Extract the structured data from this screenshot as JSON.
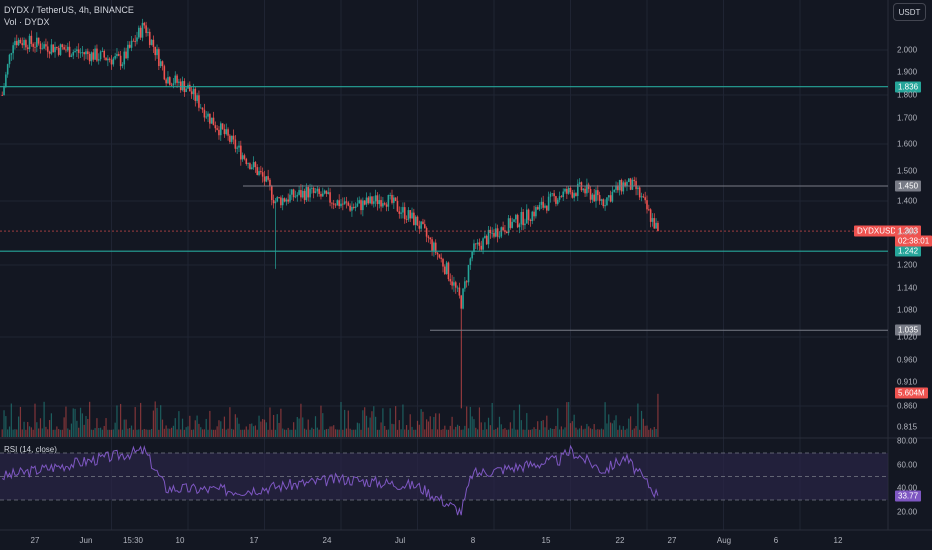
{
  "header": {
    "title": "DYDX / TetherUS, 4h, BINANCE",
    "vol_label": "Vol · DYDX"
  },
  "currency_button": "USDT",
  "colors": {
    "background": "#131722",
    "up": "#26a69a",
    "down": "#ef5350",
    "level_teal": "#26a69a",
    "level_gray": "#787b86",
    "rsi_line": "#7e57c2",
    "rsi_band": "#2a2546"
  },
  "price_axis": {
    "ticks": [
      "2.000",
      "1.900",
      "1.800",
      "1.700",
      "1.600",
      "1.500",
      "1.400",
      "1.300",
      "1.200",
      "1.140",
      "1.080",
      "1.020",
      "0.960",
      "0.910",
      "0.860",
      "0.815"
    ]
  },
  "levels": [
    {
      "label": "1.836",
      "style": "teal"
    },
    {
      "label": "1.450",
      "style": "gray"
    },
    {
      "label": "1.242",
      "style": "teal"
    },
    {
      "label": "1.035",
      "style": "gray"
    }
  ],
  "current_price": {
    "symbol": "DYDXUSDT",
    "price": "1.303",
    "countdown": "02:38:01"
  },
  "volume_tag": "5.604M",
  "rsi": {
    "label": "RSI (14, close)",
    "ticks": [
      "80.00",
      "60.00",
      "40.00",
      "20.00"
    ],
    "value": "33.77"
  },
  "time_axis": [
    "27",
    "Jun",
    "15:30",
    "10",
    "17",
    "24",
    "Jul",
    "8",
    "15",
    "22",
    "27",
    "Aug",
    "6",
    "12"
  ],
  "chart_data": {
    "type": "candlestick",
    "symbol": "DYDX / TetherUS",
    "interval": "4h",
    "exchange": "BINANCE",
    "price_key_points": [
      {
        "date": "May 24",
        "close": 1.8
      },
      {
        "date": "May 25",
        "close": 2.05
      },
      {
        "date": "May 27",
        "close": 2.03
      },
      {
        "date": "Jun 1",
        "close": 1.98
      },
      {
        "date": "Jun 4",
        "close": 1.95
      },
      {
        "date": "Jun 6",
        "close": 2.12
      },
      {
        "date": "Jun 8",
        "close": 1.88
      },
      {
        "date": "Jun 10",
        "close": 1.83
      },
      {
        "date": "Jun 12",
        "close": 1.7
      },
      {
        "date": "Jun 15",
        "close": 1.56
      },
      {
        "date": "Jun 17",
        "close": 1.47
      },
      {
        "date": "Jun 18",
        "close": 1.4
      },
      {
        "date": "Jun 21",
        "close": 1.43
      },
      {
        "date": "Jun 25",
        "close": 1.38
      },
      {
        "date": "Jun 28",
        "close": 1.41
      },
      {
        "date": "Jul 1",
        "close": 1.33
      },
      {
        "date": "Jul 4",
        "close": 1.17
      },
      {
        "date": "Jul 5",
        "close": 1.1
      },
      {
        "date": "Jul 6",
        "close": 1.24
      },
      {
        "date": "Jul 8",
        "close": 1.3
      },
      {
        "date": "Jul 11",
        "close": 1.35
      },
      {
        "date": "Jul 14",
        "close": 1.42
      },
      {
        "date": "Jul 16",
        "close": 1.44
      },
      {
        "date": "Jul 18",
        "close": 1.4
      },
      {
        "date": "Jul 20",
        "close": 1.46
      },
      {
        "date": "Jul 21",
        "close": 1.44
      },
      {
        "date": "Jul 23",
        "close": 1.303
      }
    ],
    "wick_extremes": [
      {
        "date": "Jun 18",
        "low": 1.19
      },
      {
        "date": "Jul 5",
        "low": 0.855
      }
    ],
    "horizontal_levels": [
      1.836,
      1.45,
      1.242,
      1.035
    ],
    "current_price": 1.303,
    "volume_last": "5.604M",
    "rsi_key_points": [
      {
        "date": "May 24",
        "value": 50
      },
      {
        "date": "Jun 6",
        "value": 72
      },
      {
        "date": "Jun 8",
        "value": 40
      },
      {
        "date": "Jun 15",
        "value": 38
      },
      {
        "date": "Jun 24",
        "value": 48
      },
      {
        "date": "Jul 1",
        "value": 42
      },
      {
        "date": "Jul 5",
        "value": 20
      },
      {
        "date": "Jul 6",
        "value": 52
      },
      {
        "date": "Jul 14",
        "value": 64
      },
      {
        "date": "Jul 15",
        "value": 72
      },
      {
        "date": "Jul 18",
        "value": 55
      },
      {
        "date": "Jul 20",
        "value": 66
      },
      {
        "date": "Jul 23",
        "value": 33.77
      }
    ],
    "rsi_bands": [
      70,
      30
    ],
    "rsi_current": 33.77
  }
}
